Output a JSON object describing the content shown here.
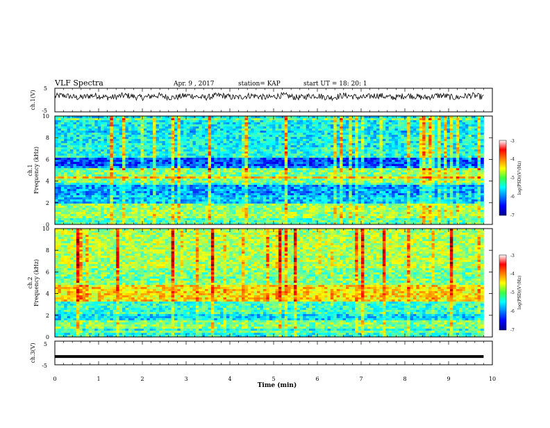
{
  "header": {
    "title": "VLF Spectra",
    "date": "Apr. 9 , 2017",
    "station": "station= KAP",
    "start": "start UT = 18: 20: 1"
  },
  "chart_data": [
    {
      "type": "line",
      "panel": "ch1-voltage",
      "ylabel": "ch.1(V)",
      "yticks": [
        "5",
        "-5"
      ],
      "ylim": [
        -5,
        5
      ],
      "xlim": [
        0,
        10
      ],
      "series_description": "noisy waveform around +1.5 V, roughly between 0 and 3 V"
    },
    {
      "type": "heatmap",
      "panel": "ch1-spectrogram",
      "channel_label": "ch.1",
      "ylabel": "Frequency (kHz)",
      "ylim": [
        0,
        10
      ],
      "yticks": [
        "0",
        "2",
        "4",
        "6",
        "8",
        "10"
      ],
      "xlim": [
        0,
        9.8
      ],
      "colorbar": {
        "label": "log(PSD)(V²/Hz)",
        "ticks": [
          "-3",
          "-4",
          "-5",
          "-6",
          "-7"
        ],
        "range": [
          -7,
          -3
        ]
      },
      "bands": [
        {
          "f0": 0.0,
          "f1": 0.6,
          "level": -5.2
        },
        {
          "f0": 0.6,
          "f1": 1.9,
          "level": -4.9
        },
        {
          "f0": 1.9,
          "f1": 2.6,
          "level": -5.7
        },
        {
          "f0": 2.6,
          "f1": 3.8,
          "level": -5.9
        },
        {
          "f0": 3.8,
          "f1": 5.1,
          "level": -5.0
        },
        {
          "f0": 5.1,
          "f1": 6.2,
          "level": -6.2
        },
        {
          "f0": 6.2,
          "f1": 7.2,
          "level": -5.4
        },
        {
          "f0": 7.2,
          "f1": 10.0,
          "level": -5.5
        }
      ]
    },
    {
      "type": "heatmap",
      "panel": "ch2-spectrogram",
      "channel_label": "ch.2",
      "ylabel": "Frequency (kHz)",
      "ylim": [
        0,
        10
      ],
      "yticks": [
        "0",
        "2",
        "4",
        "6",
        "8",
        "10"
      ],
      "xlim": [
        0,
        9.8
      ],
      "colorbar": {
        "label": "log(PSD)(V²/Hz)",
        "ticks": [
          "-3",
          "-4",
          "-5",
          "-6",
          "-7"
        ],
        "range": [
          -7,
          -3
        ]
      },
      "bands": [
        {
          "f0": 0.0,
          "f1": 0.8,
          "level": -5.4
        },
        {
          "f0": 0.8,
          "f1": 1.6,
          "level": -5.0
        },
        {
          "f0": 1.6,
          "f1": 2.2,
          "level": -5.6
        },
        {
          "f0": 2.2,
          "f1": 3.2,
          "level": -5.3
        },
        {
          "f0": 3.2,
          "f1": 4.8,
          "level": -4.4
        },
        {
          "f0": 4.8,
          "f1": 6.3,
          "level": -5.0
        },
        {
          "f0": 6.3,
          "f1": 10.0,
          "level": -4.8
        }
      ]
    },
    {
      "type": "line",
      "panel": "ch3-voltage",
      "ylabel": "ch.3(V)",
      "yticks": [
        "5",
        "-5"
      ],
      "ylim": [
        -5,
        5
      ],
      "xlim": [
        0,
        10
      ],
      "series": [
        {
          "x": [
            0,
            9.8
          ],
          "y": [
            -1.5,
            -1.5
          ]
        }
      ]
    }
  ],
  "xaxis": {
    "label": "Time (min)",
    "ticks": [
      "0",
      "1",
      "2",
      "3",
      "4",
      "5",
      "6",
      "7",
      "8",
      "9",
      "10"
    ]
  }
}
